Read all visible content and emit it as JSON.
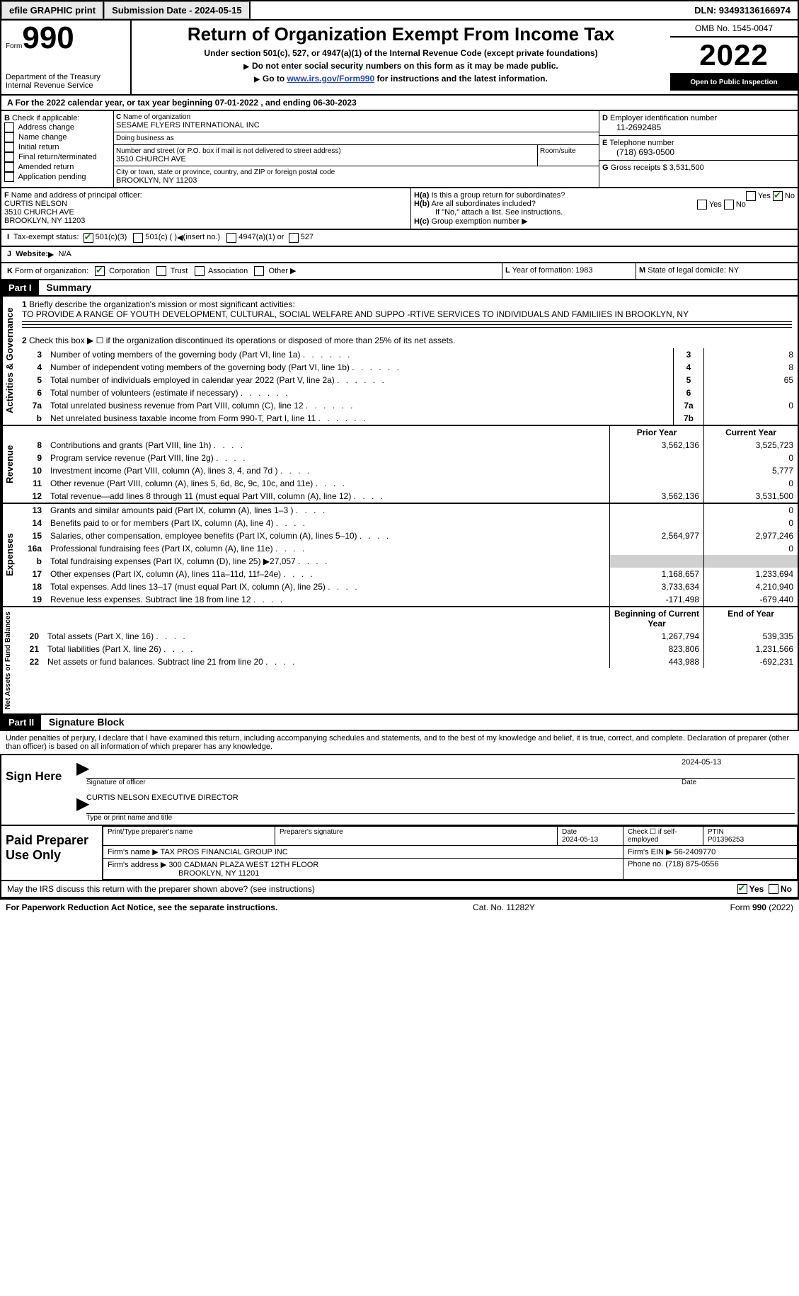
{
  "topbar": {
    "efile_label": "efile GRAPHIC print",
    "submission_label": "Submission Date - 2024-05-15",
    "dln_label": "DLN: 93493136166974"
  },
  "header": {
    "form_word": "Form",
    "form_number": "990",
    "dept_line1": "Department of the Treasury",
    "dept_line2": "Internal Revenue Service",
    "title": "Return of Organization Exempt From Income Tax",
    "subtitle": "Under section 501(c), 527, or 4947(a)(1) of the Internal Revenue Code (except private foundations)",
    "note1": "Do not enter social security numbers on this form as it may be made public.",
    "note2_pre": "Go to ",
    "note2_link": "www.irs.gov/Form990",
    "note2_post": " for instructions and the latest information.",
    "omb": "OMB No. 1545-0047",
    "year": "2022",
    "open_public": "Open to Public Inspection"
  },
  "sectionA": {
    "cal_year": "For the 2022 calendar year, or tax year beginning 07-01-2022    , and ending 06-30-2023",
    "b_label": "Check if applicable:",
    "b_opts": [
      "Address change",
      "Name change",
      "Initial return",
      "Final return/terminated",
      "Amended return",
      "Application pending"
    ],
    "c_label": "Name of organization",
    "org_name": "SESAME FLYERS INTERNATIONAL INC",
    "dba_label": "Doing business as",
    "addr_label": "Number and street (or P.O. box if mail is not delivered to street address)",
    "room_label": "Room/suite",
    "addr": "3510 CHURCH AVE",
    "city_label": "City or town, state or province, country, and ZIP or foreign postal code",
    "city": "BROOKLYN, NY  11203",
    "d_label": "Employer identification number",
    "ein": "11-2692485",
    "e_label": "Telephone number",
    "phone": "(718) 693-0500",
    "g_label": "Gross receipts $",
    "gross_receipts": "3,531,500",
    "f_label": "Name and address of principal officer:",
    "officer_name": "CURTIS NELSON",
    "officer_addr1": "3510 CHURCH AVE",
    "officer_addr2": "BROOKLYN, NY  11203",
    "h_a": "Is this a group return for subordinates?",
    "h_b": "Are all subordinates included?",
    "h_note": "If \"No,\" attach a list. See instructions.",
    "h_c": "Group exemption number",
    "yes": "Yes",
    "no": "No",
    "i_label": "Tax-exempt status:",
    "i_501c3": "501(c)(3)",
    "i_501c": "501(c) (   )",
    "i_insert": "(insert no.)",
    "i_4947": "4947(a)(1) or",
    "i_527": "527",
    "j_label": "Website:",
    "website": "N/A",
    "k_label": "Form of organization:",
    "k_corp": "Corporation",
    "k_trust": "Trust",
    "k_assoc": "Association",
    "k_other": "Other",
    "l_label": "Year of formation:",
    "l_val": "1983",
    "m_label": "State of legal domicile:",
    "m_val": "NY"
  },
  "part1": {
    "header": "Part I",
    "title": "Summary",
    "q1_label": "Briefly describe the organization's mission or most significant activities:",
    "mission": "TO PROVIDE A RANGE OF YOUTH DEVELOPMENT, CULTURAL, SOCIAL WELFARE AND SUPPO -RTIVE SERVICES TO INDIVIDUALS AND FAMILIIES IN BROOKLYN, NY",
    "q2": "Check this box ▶ ☐ if the organization discontinued its operations or disposed of more than 25% of its net assets.",
    "rows_gov": [
      {
        "n": "3",
        "label": "Number of voting members of the governing body (Part VI, line 1a)",
        "box": "3",
        "val": "8"
      },
      {
        "n": "4",
        "label": "Number of independent voting members of the governing body (Part VI, line 1b)",
        "box": "4",
        "val": "8"
      },
      {
        "n": "5",
        "label": "Total number of individuals employed in calendar year 2022 (Part V, line 2a)",
        "box": "5",
        "val": "65"
      },
      {
        "n": "6",
        "label": "Total number of volunteers (estimate if necessary)",
        "box": "6",
        "val": ""
      },
      {
        "n": "7a",
        "label": "Total unrelated business revenue from Part VIII, column (C), line 12",
        "box": "7a",
        "val": "0"
      },
      {
        "n": "b",
        "label": "Net unrelated business taxable income from Form 990-T, Part I, line 11",
        "box": "7b",
        "val": ""
      }
    ],
    "col_prior": "Prior Year",
    "col_current": "Current Year",
    "revenue_label": "Revenue",
    "expenses_label": "Expenses",
    "netassets_label": "Net Assets or Fund Balances",
    "activities_label": "Activities & Governance",
    "rows_rev": [
      {
        "n": "8",
        "label": "Contributions and grants (Part VIII, line 1h)",
        "prior": "3,562,136",
        "cur": "3,525,723"
      },
      {
        "n": "9",
        "label": "Program service revenue (Part VIII, line 2g)",
        "prior": "",
        "cur": "0"
      },
      {
        "n": "10",
        "label": "Investment income (Part VIII, column (A), lines 3, 4, and 7d )",
        "prior": "",
        "cur": "5,777"
      },
      {
        "n": "11",
        "label": "Other revenue (Part VIII, column (A), lines 5, 6d, 8c, 9c, 10c, and 11e)",
        "prior": "",
        "cur": "0"
      },
      {
        "n": "12",
        "label": "Total revenue—add lines 8 through 11 (must equal Part VIII, column (A), line 12)",
        "prior": "3,562,136",
        "cur": "3,531,500"
      }
    ],
    "rows_exp": [
      {
        "n": "13",
        "label": "Grants and similar amounts paid (Part IX, column (A), lines 1–3 )",
        "prior": "",
        "cur": "0"
      },
      {
        "n": "14",
        "label": "Benefits paid to or for members (Part IX, column (A), line 4)",
        "prior": "",
        "cur": "0"
      },
      {
        "n": "15",
        "label": "Salaries, other compensation, employee benefits (Part IX, column (A), lines 5–10)",
        "prior": "2,564,977",
        "cur": "2,977,246"
      },
      {
        "n": "16a",
        "label": "Professional fundraising fees (Part IX, column (A), line 11e)",
        "prior": "",
        "cur": "0"
      },
      {
        "n": "b",
        "label": "Total fundraising expenses (Part IX, column (D), line 25) ▶27,057",
        "prior": "GRAY",
        "cur": "GRAY"
      },
      {
        "n": "17",
        "label": "Other expenses (Part IX, column (A), lines 11a–11d, 11f–24e)",
        "prior": "1,168,657",
        "cur": "1,233,694"
      },
      {
        "n": "18",
        "label": "Total expenses. Add lines 13–17 (must equal Part IX, column (A), line 25)",
        "prior": "3,733,634",
        "cur": "4,210,940"
      },
      {
        "n": "19",
        "label": "Revenue less expenses. Subtract line 18 from line 12",
        "prior": "-171,498",
        "cur": "-679,440"
      }
    ],
    "col_begin": "Beginning of Current Year",
    "col_end": "End of Year",
    "rows_net": [
      {
        "n": "20",
        "label": "Total assets (Part X, line 16)",
        "prior": "1,267,794",
        "cur": "539,335"
      },
      {
        "n": "21",
        "label": "Total liabilities (Part X, line 26)",
        "prior": "823,806",
        "cur": "1,231,566"
      },
      {
        "n": "22",
        "label": "Net assets or fund balances. Subtract line 21 from line 20",
        "prior": "443,988",
        "cur": "-692,231"
      }
    ]
  },
  "part2": {
    "header": "Part II",
    "title": "Signature Block",
    "decl": "Under penalties of perjury, I declare that I have examined this return, including accompanying schedules and statements, and to the best of my knowledge and belief, it is true, correct, and complete. Declaration of preparer (other than officer) is based on all information of which preparer has any knowledge.",
    "sign_here": "Sign Here",
    "sig_officer": "Signature of officer",
    "sig_date": "2024-05-13",
    "sig_date2": "Date",
    "sig_name": "CURTIS NELSON  EXECUTIVE DIRECTOR",
    "type_name": "Type or print name and title",
    "paid": "Paid Preparer Use Only",
    "prep_name_hdr": "Print/Type preparer's name",
    "prep_sig_hdr": "Preparer's signature",
    "prep_date_hdr": "Date",
    "prep_date": "2024-05-13",
    "check_if": "Check ☐ if self-employed",
    "ptin_hdr": "PTIN",
    "ptin": "P01396253",
    "firm_name_lbl": "Firm's name   ▶",
    "firm_name": "TAX PROS FINANCIAL GROUP INC",
    "firm_ein_lbl": "Firm's EIN ▶",
    "firm_ein": "56-2409770",
    "firm_addr_lbl": "Firm's address ▶",
    "firm_addr1": "300 CADMAN PLAZA WEST 12TH FLOOR",
    "firm_addr2": "BROOKLYN, NY  11201",
    "phone_lbl": "Phone no.",
    "phone": "(718) 875-0556",
    "may_irs": "May the IRS discuss this return with the preparer shown above? (see instructions)",
    "paperwork": "For Paperwork Reduction Act Notice, see the separate instructions.",
    "cat": "Cat. No. 11282Y",
    "form_foot": "Form 990 (2022)"
  }
}
